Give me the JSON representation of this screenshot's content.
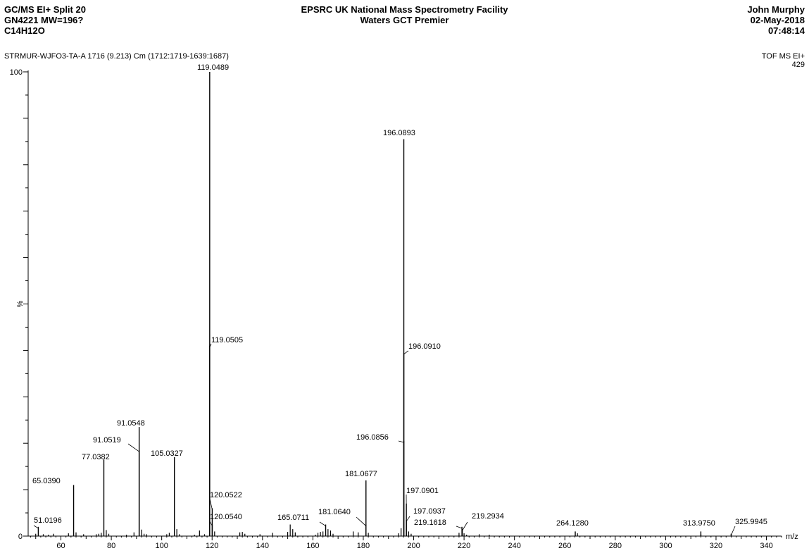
{
  "header": {
    "left": [
      "GC/MS EI+ Split 20",
      "GN4221  MW=196?",
      "C14H12O"
    ],
    "center": [
      "EPSRC UK National Mass Spectrometry Facility",
      "Waters GCT Premier"
    ],
    "right": [
      "John Murphy",
      "02-May-2018",
      "07:48:14"
    ]
  },
  "scan_info": "STRMUR-WJFO3-TA-A 1716 (9.213) Cm (1712:1719-1639:1687)",
  "mode": "TOF MS EI+",
  "max_intensity": "429",
  "chart_data": {
    "type": "bar",
    "title": "",
    "xlabel": "m/z",
    "ylabel": "%",
    "xlim": [
      47,
      346
    ],
    "ylim": [
      0,
      100
    ],
    "x_ticks": [
      60,
      80,
      100,
      120,
      140,
      160,
      180,
      200,
      220,
      240,
      260,
      280,
      300,
      320,
      340
    ],
    "y_ticks": [
      {
        "value": 0,
        "label": "0"
      },
      {
        "value": 100,
        "label": "100"
      }
    ],
    "grid": false,
    "series": [
      {
        "labeled_peaks": [
          {
            "mz": 51.0196,
            "intensity": 2.0,
            "label": "51.0196"
          },
          {
            "mz": 65.039,
            "intensity": 11.0,
            "label": "65.0390"
          },
          {
            "mz": 77.0382,
            "intensity": 16.5,
            "label": "77.0382"
          },
          {
            "mz": 91.0519,
            "intensity": 18.5,
            "label": "91.0519"
          },
          {
            "mz": 91.0548,
            "intensity": 23.5,
            "label": "91.0548"
          },
          {
            "mz": 105.0327,
            "intensity": 17.0,
            "label": "105.0327"
          },
          {
            "mz": 119.0489,
            "intensity": 100,
            "label": "119.0489"
          },
          {
            "mz": 119.0505,
            "intensity": 41.0,
            "label": "119.0505"
          },
          {
            "mz": 120.0522,
            "intensity": 6.0,
            "label": "120.0522"
          },
          {
            "mz": 120.054,
            "intensity": 2.5,
            "label": "120.0540"
          },
          {
            "mz": 165.0711,
            "intensity": 2.5,
            "label": "165.0711"
          },
          {
            "mz": 181.064,
            "intensity": 2.5,
            "label": "181.0640"
          },
          {
            "mz": 181.0677,
            "intensity": 12.0,
            "label": "181.0677"
          },
          {
            "mz": 196.0856,
            "intensity": 20.5,
            "label": "196.0856"
          },
          {
            "mz": 196.0893,
            "intensity": 85.5,
            "label": "196.0893"
          },
          {
            "mz": 196.091,
            "intensity": 39.5,
            "label": "196.0910"
          },
          {
            "mz": 197.0901,
            "intensity": 7.0,
            "label": "197.0901"
          },
          {
            "mz": 197.0937,
            "intensity": 3.5,
            "label": "197.0937"
          },
          {
            "mz": 219.1618,
            "intensity": 2.0,
            "label": "219.1618"
          },
          {
            "mz": 219.2934,
            "intensity": 1.5,
            "label": "219.2934"
          },
          {
            "mz": 264.128,
            "intensity": 1.0,
            "label": "264.1280"
          },
          {
            "mz": 313.975,
            "intensity": 1.0,
            "label": "313.9750"
          },
          {
            "mz": 325.9945,
            "intensity": 0.5,
            "label": "325.9945"
          }
        ],
        "minor_peaks": [
          [
            50,
            0.5
          ],
          [
            53,
            0.4
          ],
          [
            55,
            0.3
          ],
          [
            57,
            0.5
          ],
          [
            63,
            0.6
          ],
          [
            66,
            0.8
          ],
          [
            69,
            0.4
          ],
          [
            74,
            0.4
          ],
          [
            75,
            0.5
          ],
          [
            76,
            0.7
          ],
          [
            78,
            1.3
          ],
          [
            79,
            0.5
          ],
          [
            86,
            0.3
          ],
          [
            89,
            0.8
          ],
          [
            92,
            1.4
          ],
          [
            93,
            0.5
          ],
          [
            94,
            0.4
          ],
          [
            102,
            0.4
          ],
          [
            103,
            0.7
          ],
          [
            106,
            1.5
          ],
          [
            107,
            0.4
          ],
          [
            113,
            0.3
          ],
          [
            115,
            1.2
          ],
          [
            117,
            0.4
          ],
          [
            121,
            1.0
          ],
          [
            131,
            0.8
          ],
          [
            132,
            0.9
          ],
          [
            133,
            0.5
          ],
          [
            139,
            0.4
          ],
          [
            144,
            0.7
          ],
          [
            150,
            0.9
          ],
          [
            151,
            2.5
          ],
          [
            152,
            1.5
          ],
          [
            153,
            0.8
          ],
          [
            161,
            0.3
          ],
          [
            162,
            0.7
          ],
          [
            163,
            0.9
          ],
          [
            164,
            1.0
          ],
          [
            166,
            1.5
          ],
          [
            167,
            1.2
          ],
          [
            168,
            0.5
          ],
          [
            176,
            1.0
          ],
          [
            178,
            0.8
          ],
          [
            182,
            0.7
          ],
          [
            194,
            0.6
          ],
          [
            195,
            1.7
          ],
          [
            198,
            1.0
          ],
          [
            199,
            0.5
          ],
          [
            218,
            0.7
          ],
          [
            220,
            0.6
          ],
          [
            221,
            0.3
          ],
          [
            226,
            0.4
          ],
          [
            230,
            0.3
          ],
          [
            265,
            0.6
          ],
          [
            314,
            0.4
          ]
        ]
      }
    ]
  }
}
